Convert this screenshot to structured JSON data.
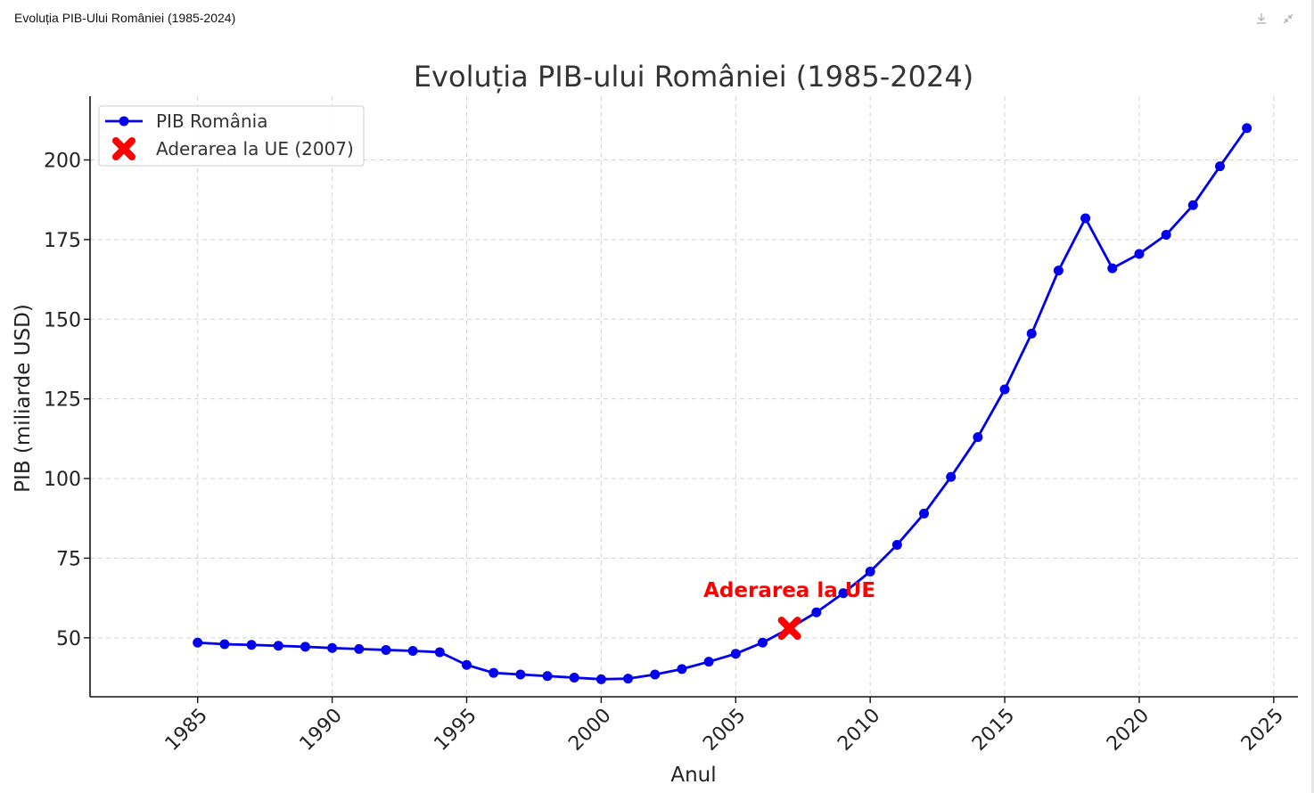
{
  "window": {
    "title": "Evoluția PIB-Ului României (1985-2024)",
    "download_icon": "download-icon",
    "collapse_icon": "collapse-icon"
  },
  "chart_data": {
    "type": "line",
    "title": "Evoluția PIB-ului României (1985-2024)",
    "xlabel": "Anul",
    "ylabel": "PIB (miliarde USD)",
    "xlim": [
      1981,
      2025.9
    ],
    "ylim": [
      31.5,
      220
    ],
    "xticks": [
      1985,
      1990,
      1995,
      2000,
      2005,
      2010,
      2015,
      2020,
      2025
    ],
    "yticks": [
      50,
      75,
      100,
      125,
      150,
      175,
      200
    ],
    "grid": true,
    "legend_position": "top-left",
    "series": [
      {
        "name": "PIB România",
        "color": "#0000ee",
        "x": [
          1985,
          1986,
          1987,
          1988,
          1989,
          1990,
          1991,
          1992,
          1993,
          1994,
          1995,
          1996,
          1997,
          1998,
          1999,
          2000,
          2001,
          2002,
          2003,
          2004,
          2005,
          2006,
          2007,
          2008,
          2009,
          2010,
          2011,
          2012,
          2013,
          2014,
          2015,
          2016,
          2017,
          2018,
          2019,
          2020,
          2021,
          2022,
          2023,
          2024
        ],
        "y": [
          48.5,
          48.0,
          47.8,
          47.5,
          47.2,
          46.8,
          46.5,
          46.2,
          45.9,
          45.5,
          41.5,
          39.0,
          38.5,
          38.0,
          37.5,
          37.0,
          37.2,
          38.5,
          40.2,
          42.5,
          45.0,
          48.5,
          53.0,
          58.0,
          64.0,
          70.8,
          79.2,
          89.0,
          100.5,
          113.0,
          128.0,
          145.5,
          165.3,
          181.7,
          166.0,
          170.5,
          176.5,
          185.8,
          198.0,
          210.0
        ]
      }
    ],
    "annotations": [
      {
        "name": "Aderarea la UE (2007)",
        "label": "Aderarea la UE",
        "x": 2007,
        "y": 53.0,
        "color": "#ff0000"
      }
    ]
  }
}
